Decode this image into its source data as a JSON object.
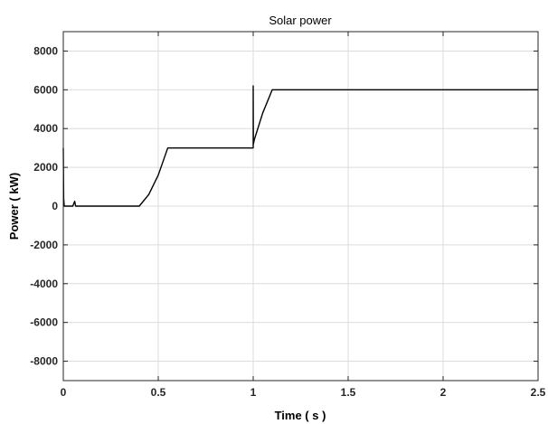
{
  "chart_data": {
    "type": "line",
    "title": "Solar power",
    "xlabel": "Time ( s )",
    "ylabel": "Power ( kW)",
    "xlim": [
      0,
      2.5
    ],
    "ylim": [
      -9000,
      9000
    ],
    "xticks": [
      0,
      0.5,
      1,
      1.5,
      2,
      2.5
    ],
    "xtick_labels": [
      "0",
      "0.5",
      "1",
      "1.5",
      "2",
      "2.5"
    ],
    "yticks": [
      -8000,
      -6000,
      -4000,
      -2000,
      0,
      2000,
      4000,
      6000,
      8000
    ],
    "ytick_labels": [
      "-8000",
      "-6000",
      "-4000",
      "-2000",
      "0",
      "2000",
      "4000",
      "6000",
      "8000"
    ],
    "grid": true,
    "line_color": "#000000",
    "series": [
      {
        "x": [
          0,
          0.002,
          0.005,
          0.006,
          0.01,
          0.05,
          0.06,
          0.065,
          0.07,
          0.1,
          0.2,
          0.3,
          0.4,
          0.45,
          0.5,
          0.55,
          0.6,
          0.8,
          1.0,
          1.0,
          1.001,
          1.005,
          1.05,
          1.1,
          1.5,
          2.0,
          2.5
        ],
        "y": [
          3000,
          400,
          0,
          0,
          0,
          0,
          250,
          0,
          0,
          0,
          0,
          0,
          0,
          600,
          1600,
          3000,
          3000,
          3000,
          3000,
          6200,
          3200,
          3400,
          4800,
          6000,
          6000,
          6000,
          6000
        ]
      }
    ]
  }
}
